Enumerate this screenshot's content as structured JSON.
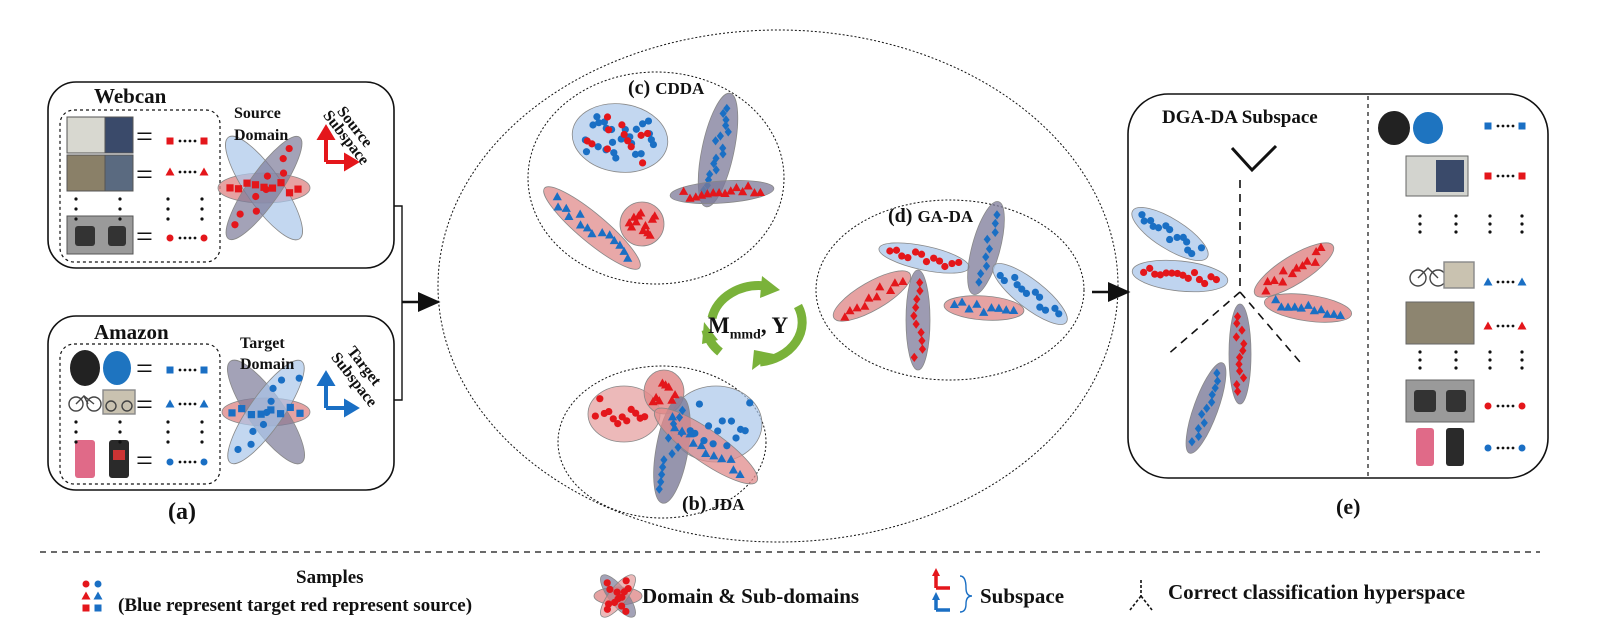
{
  "panel_a": {
    "webcam_title": "Webcan",
    "amazon_title": "Amazon",
    "source_domain": [
      "Source",
      "Domain"
    ],
    "target_domain": [
      "Target",
      "Domain"
    ],
    "source_subspace": [
      "Source",
      "Subspace"
    ],
    "target_subspace": [
      "Target",
      "Subspace"
    ],
    "label": "(a)"
  },
  "panel_c": {
    "tag": "(c)",
    "name": "CDDA"
  },
  "panel_d": {
    "tag": "(d)",
    "name": "GA-DA"
  },
  "panel_b": {
    "tag": "(b)",
    "name": "JDA"
  },
  "cycle": {
    "main": "M",
    "sub": "mmd",
    "rest": ", Y"
  },
  "panel_e": {
    "title": "DGA-DA Subspace",
    "label": "(e)"
  },
  "legend": {
    "samples_line1": "Samples",
    "samples_line2": "(Blue represent target red represent source)",
    "domain": "Domain & Sub-domains",
    "subspace": "Subspace",
    "hyperspace": "Correct classification hyperspace"
  },
  "colors": {
    "red": "#e4161b",
    "blue": "#1a6fc4",
    "red_fill": "#e08b8b",
    "blue_fill": "#a9c6ea",
    "grey_fill": "#7c7a98",
    "green": "#7ab23a"
  }
}
